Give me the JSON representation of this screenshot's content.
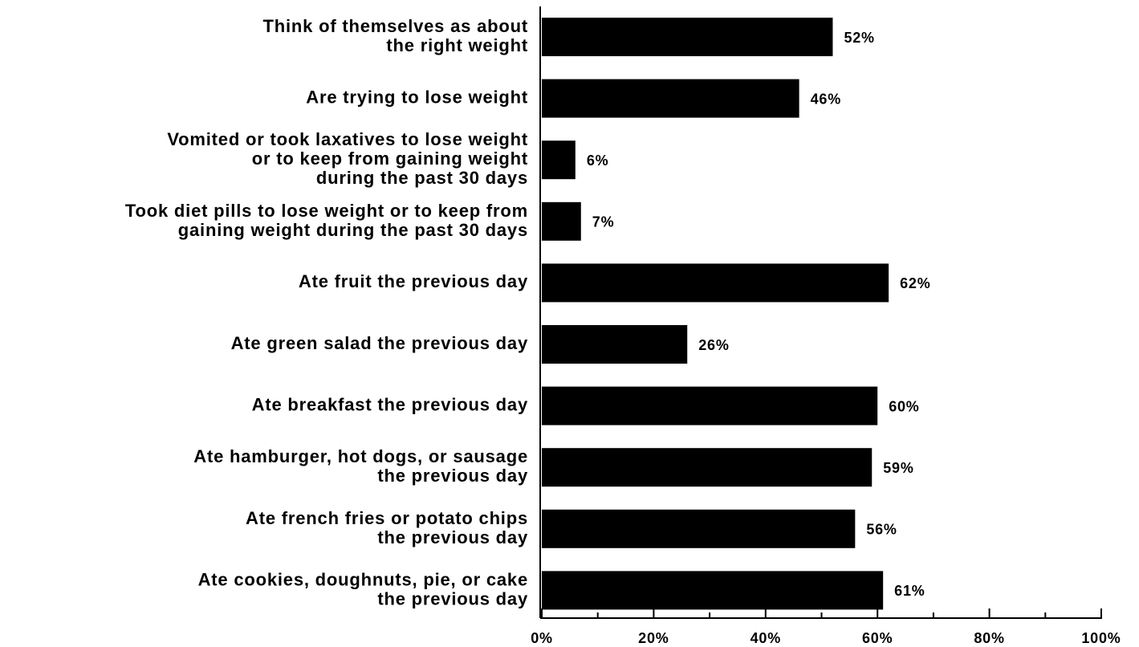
{
  "chart_data": {
    "type": "barh",
    "categories": [
      "Think of themselves as about\nthe right weight",
      "Are trying to lose weight",
      "Vomited or took laxatives to lose weight\nor to keep from gaining weight\nduring the past 30 days",
      "Took diet pills to lose weight or to keep from\ngaining weight during the past 30 days",
      "Ate fruit the previous day",
      "Ate green salad the previous day",
      "Ate breakfast the previous day",
      "Ate hamburger, hot dogs, or sausage\nthe previous day",
      "Ate french fries or potato chips\nthe previous day",
      "Ate cookies, doughnuts, pie, or cake\nthe previous day"
    ],
    "values": [
      52,
      46,
      6,
      7,
      62,
      26,
      60,
      59,
      56,
      61
    ],
    "value_labels": [
      "52%",
      "46%",
      "6%",
      "7%",
      "62%",
      "26%",
      "60%",
      "59%",
      "56%",
      "61%"
    ],
    "color": "#000000",
    "xlim": [
      0,
      100
    ],
    "xticks": [
      {
        "value": 0,
        "label": "0%"
      },
      {
        "value": 20,
        "label": "20%"
      },
      {
        "value": 40,
        "label": "40%"
      },
      {
        "value": 60,
        "label": "60%"
      },
      {
        "value": 80,
        "label": "80%"
      },
      {
        "value": 100,
        "label": "100%"
      }
    ],
    "xminorticks": [
      10,
      30,
      50,
      70,
      90
    ]
  }
}
